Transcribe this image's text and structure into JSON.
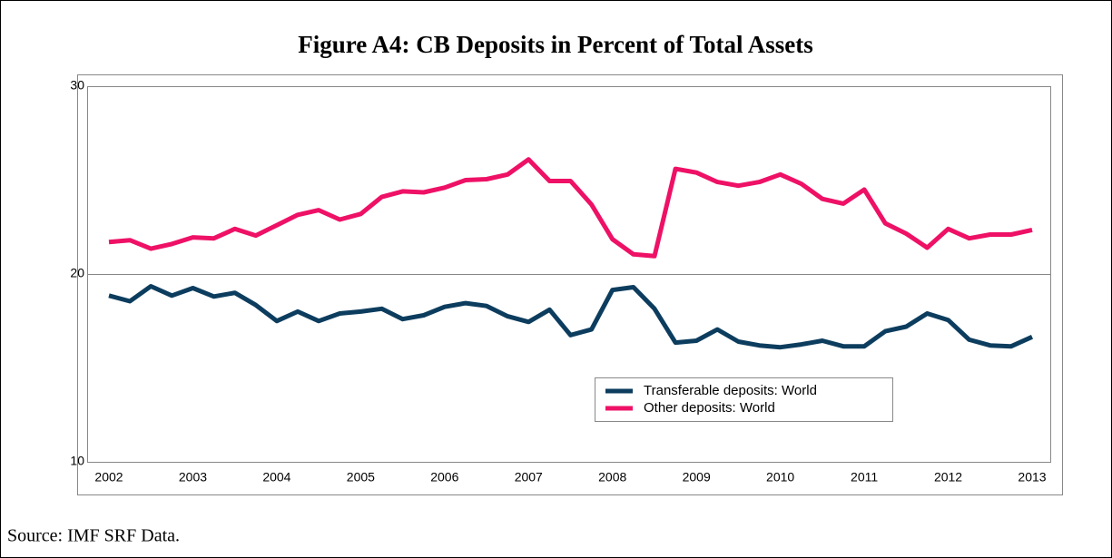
{
  "chart_data": {
    "type": "line",
    "title": "Figure A4: CB Deposits in Percent of Total Assets",
    "source": "Source: IMF SRF Data.",
    "categories": [
      "2002",
      null,
      null,
      null,
      "2003",
      null,
      null,
      null,
      "2004",
      null,
      null,
      null,
      "2005",
      null,
      null,
      null,
      "2006",
      null,
      null,
      null,
      "2007",
      null,
      null,
      null,
      "2008",
      null,
      null,
      null,
      "2009",
      null,
      null,
      null,
      "2010",
      null,
      null,
      null,
      "2011",
      null,
      null,
      null,
      "2012",
      null,
      null,
      null,
      "2013"
    ],
    "series": [
      {
        "name": "Transferable deposits: World",
        "color": "#0d3d5e",
        "values": [
          18.85,
          18.55,
          19.35,
          18.85,
          19.25,
          18.8,
          19.0,
          18.35,
          17.5,
          18.0,
          17.5,
          17.9,
          18.0,
          18.15,
          17.6,
          17.8,
          18.25,
          18.45,
          18.3,
          17.75,
          17.45,
          18.1,
          16.75,
          17.05,
          19.15,
          19.3,
          18.15,
          16.35,
          16.45,
          17.05,
          16.4,
          16.2,
          16.1,
          16.25,
          16.45,
          16.15,
          16.15,
          16.95,
          17.2,
          17.9,
          17.55,
          16.5,
          16.2,
          16.15,
          16.65
        ]
      },
      {
        "name": "Other deposits: World",
        "color": "#ee1166",
        "values": [
          21.7,
          21.8,
          21.35,
          21.6,
          21.95,
          21.9,
          22.4,
          22.05,
          22.6,
          23.15,
          23.4,
          22.9,
          23.2,
          24.1,
          24.4,
          24.35,
          24.6,
          25.0,
          25.05,
          25.3,
          26.1,
          24.95,
          24.95,
          23.7,
          21.85,
          21.05,
          20.95,
          25.6,
          25.4,
          24.9,
          24.7,
          24.9,
          25.3,
          24.8,
          24.0,
          23.75,
          24.5,
          22.7,
          22.15,
          21.4,
          22.4,
          21.9,
          22.1,
          22.1,
          22.35
        ]
      }
    ],
    "ylim": [
      10,
      30
    ],
    "yticks": [
      10,
      20,
      30
    ],
    "grid": true
  }
}
